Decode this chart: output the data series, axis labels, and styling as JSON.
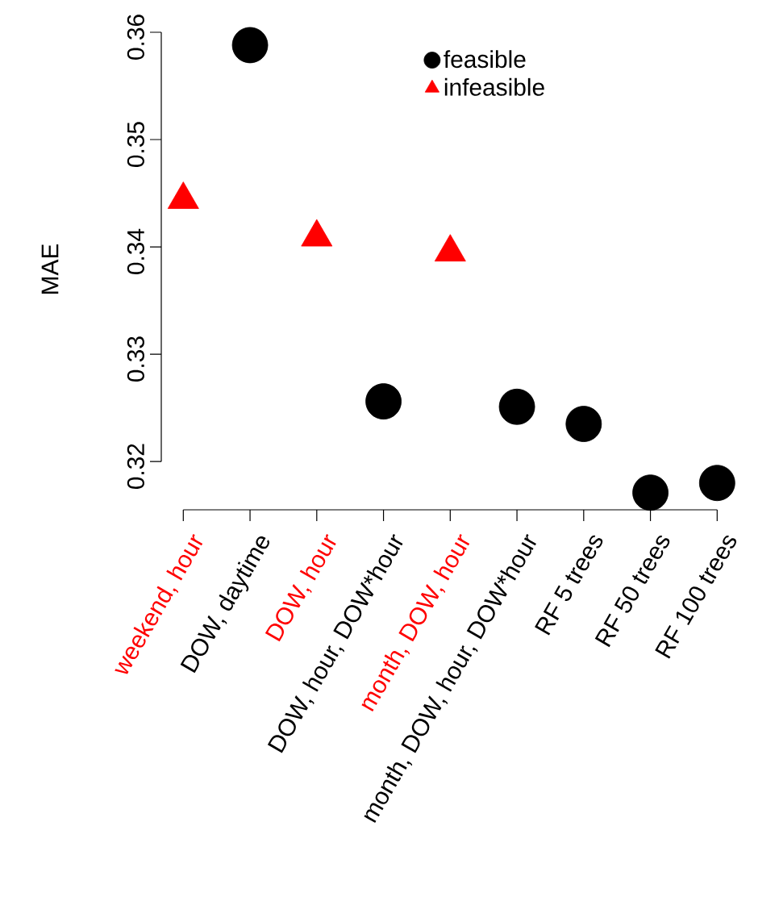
{
  "chart_data": {
    "type": "scatter",
    "ylabel": "MAE",
    "categories": [
      "weekend, hour",
      "DOW, daytime",
      "DOW, hour",
      "DOW, hour, DOW*hour",
      "month, DOW, hour",
      "month, DOW, hour, DOW*hour",
      "RF 5 trees",
      "RF 50 trees",
      "RF 100 trees"
    ],
    "series": [
      {
        "name": "feasible",
        "color": "#000000",
        "marker": "circle",
        "values": [
          null,
          0.3588,
          null,
          0.3256,
          null,
          0.3251,
          0.3235,
          0.3171,
          0.318
        ]
      },
      {
        "name": "infeasible",
        "color": "#ff0000",
        "marker": "triangle",
        "values": [
          0.3444,
          null,
          0.3409,
          null,
          0.3395,
          null,
          null,
          null,
          null
        ]
      }
    ],
    "ylim": [
      0.3155,
      0.3603
    ],
    "yticks": [
      0.32,
      0.33,
      0.34,
      0.35,
      0.36
    ],
    "legend": "top right",
    "grid": false
  }
}
